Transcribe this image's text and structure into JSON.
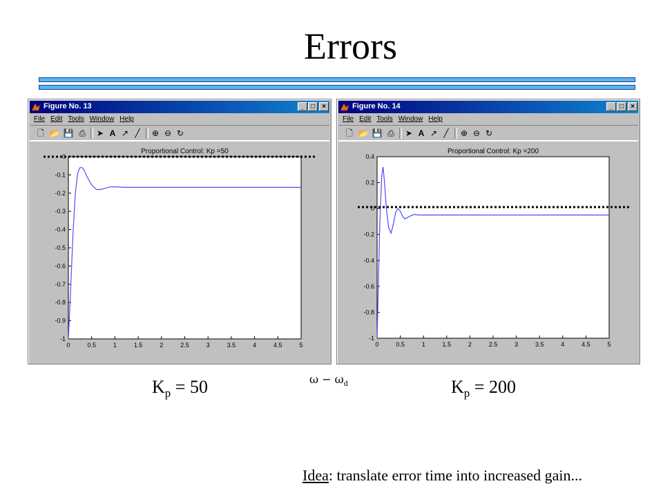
{
  "slide": {
    "title": "Errors",
    "kp_left": {
      "k": "K",
      "sub": "p",
      "rest": " = 50"
    },
    "kp_right": {
      "k": "K",
      "sub": "p",
      "rest": " = 200"
    },
    "omega_label": {
      "main": "ω − ω",
      "sub": "d"
    },
    "idea": {
      "prefix": "Idea",
      "rest": ": translate error time into increased gain..."
    }
  },
  "colors": {
    "accent_bar": "#58b6f2",
    "titlebar": "#000080",
    "plot_line": "#4b4bff"
  },
  "windows": [
    {
      "title": "Figure No. 13",
      "menu": [
        "File",
        "Edit",
        "Tools",
        "Window",
        "Help"
      ],
      "toolbar_icons": [
        "new-file-icon",
        "open-folder-icon",
        "save-icon",
        "print-icon",
        "pointer-icon",
        "text-icon",
        "arrow-icon",
        "line-icon",
        "zoom-in-icon",
        "zoom-out-icon",
        "rotate-icon"
      ],
      "window_buttons": [
        "_",
        "□",
        "×"
      ]
    },
    {
      "title": "Figure No. 14",
      "menu": [
        "File",
        "Edit",
        "Tools",
        "Window",
        "Help"
      ],
      "toolbar_icons": [
        "new-file-icon",
        "open-folder-icon",
        "save-icon",
        "print-icon",
        "pointer-icon",
        "text-icon",
        "arrow-icon",
        "line-icon",
        "zoom-in-icon",
        "zoom-out-icon",
        "rotate-icon"
      ],
      "window_buttons": [
        "_",
        "□",
        "×"
      ]
    }
  ],
  "chart_data": [
    {
      "type": "line",
      "title": "Proportional Control: Kp =50",
      "xlim": [
        0,
        5
      ],
      "ylim": [
        -1,
        0
      ],
      "xticks": [
        "0",
        "0.5",
        "1",
        "1.5",
        "2",
        "2.5",
        "3",
        "3.5",
        "4",
        "4.5",
        "5"
      ],
      "yticks": [
        "0",
        "-0.1",
        "-0.2",
        "-0.3",
        "-0.4",
        "-0.5",
        "-0.6",
        "-0.7",
        "-0.8",
        "-0.9",
        "-1"
      ],
      "reference_line": 0,
      "series": [
        {
          "x": [
            0,
            0.05,
            0.1,
            0.15,
            0.2,
            0.25,
            0.3,
            0.35,
            0.4,
            0.5,
            0.6,
            0.7,
            0.8,
            0.9,
            1.0,
            1.2,
            1.5,
            2,
            3,
            4,
            5
          ],
          "y": [
            -1,
            -0.72,
            -0.42,
            -0.2,
            -0.09,
            -0.06,
            -0.06,
            -0.08,
            -0.11,
            -0.155,
            -0.18,
            -0.18,
            -0.172,
            -0.166,
            -0.165,
            -0.168,
            -0.168,
            -0.168,
            -0.168,
            -0.168,
            -0.168
          ]
        }
      ]
    },
    {
      "type": "line",
      "title": "Proportional Control: Kp =200",
      "xlim": [
        0,
        5
      ],
      "ylim": [
        -1,
        0.4
      ],
      "xticks": [
        "0",
        "0.5",
        "1",
        "1.5",
        "2",
        "2.5",
        "3",
        "3.5",
        "4",
        "4.5",
        "5"
      ],
      "yticks": [
        "0.4",
        "0.2",
        "0",
        "-0.2",
        "-0.4",
        "-0.6",
        "-0.8",
        "-1"
      ],
      "reference_line": 0,
      "series": [
        {
          "x": [
            0,
            0.03,
            0.06,
            0.1,
            0.13,
            0.16,
            0.2,
            0.25,
            0.3,
            0.35,
            0.4,
            0.45,
            0.5,
            0.55,
            0.6,
            0.7,
            0.8,
            0.9,
            1.0,
            1.5,
            2,
            3,
            4,
            5
          ],
          "y": [
            -1,
            -0.55,
            -0.1,
            0.25,
            0.32,
            0.2,
            0.0,
            -0.15,
            -0.19,
            -0.12,
            -0.03,
            0.0,
            -0.02,
            -0.06,
            -0.08,
            -0.06,
            -0.045,
            -0.05,
            -0.05,
            -0.05,
            -0.05,
            -0.05,
            -0.05,
            -0.05
          ]
        }
      ]
    }
  ]
}
